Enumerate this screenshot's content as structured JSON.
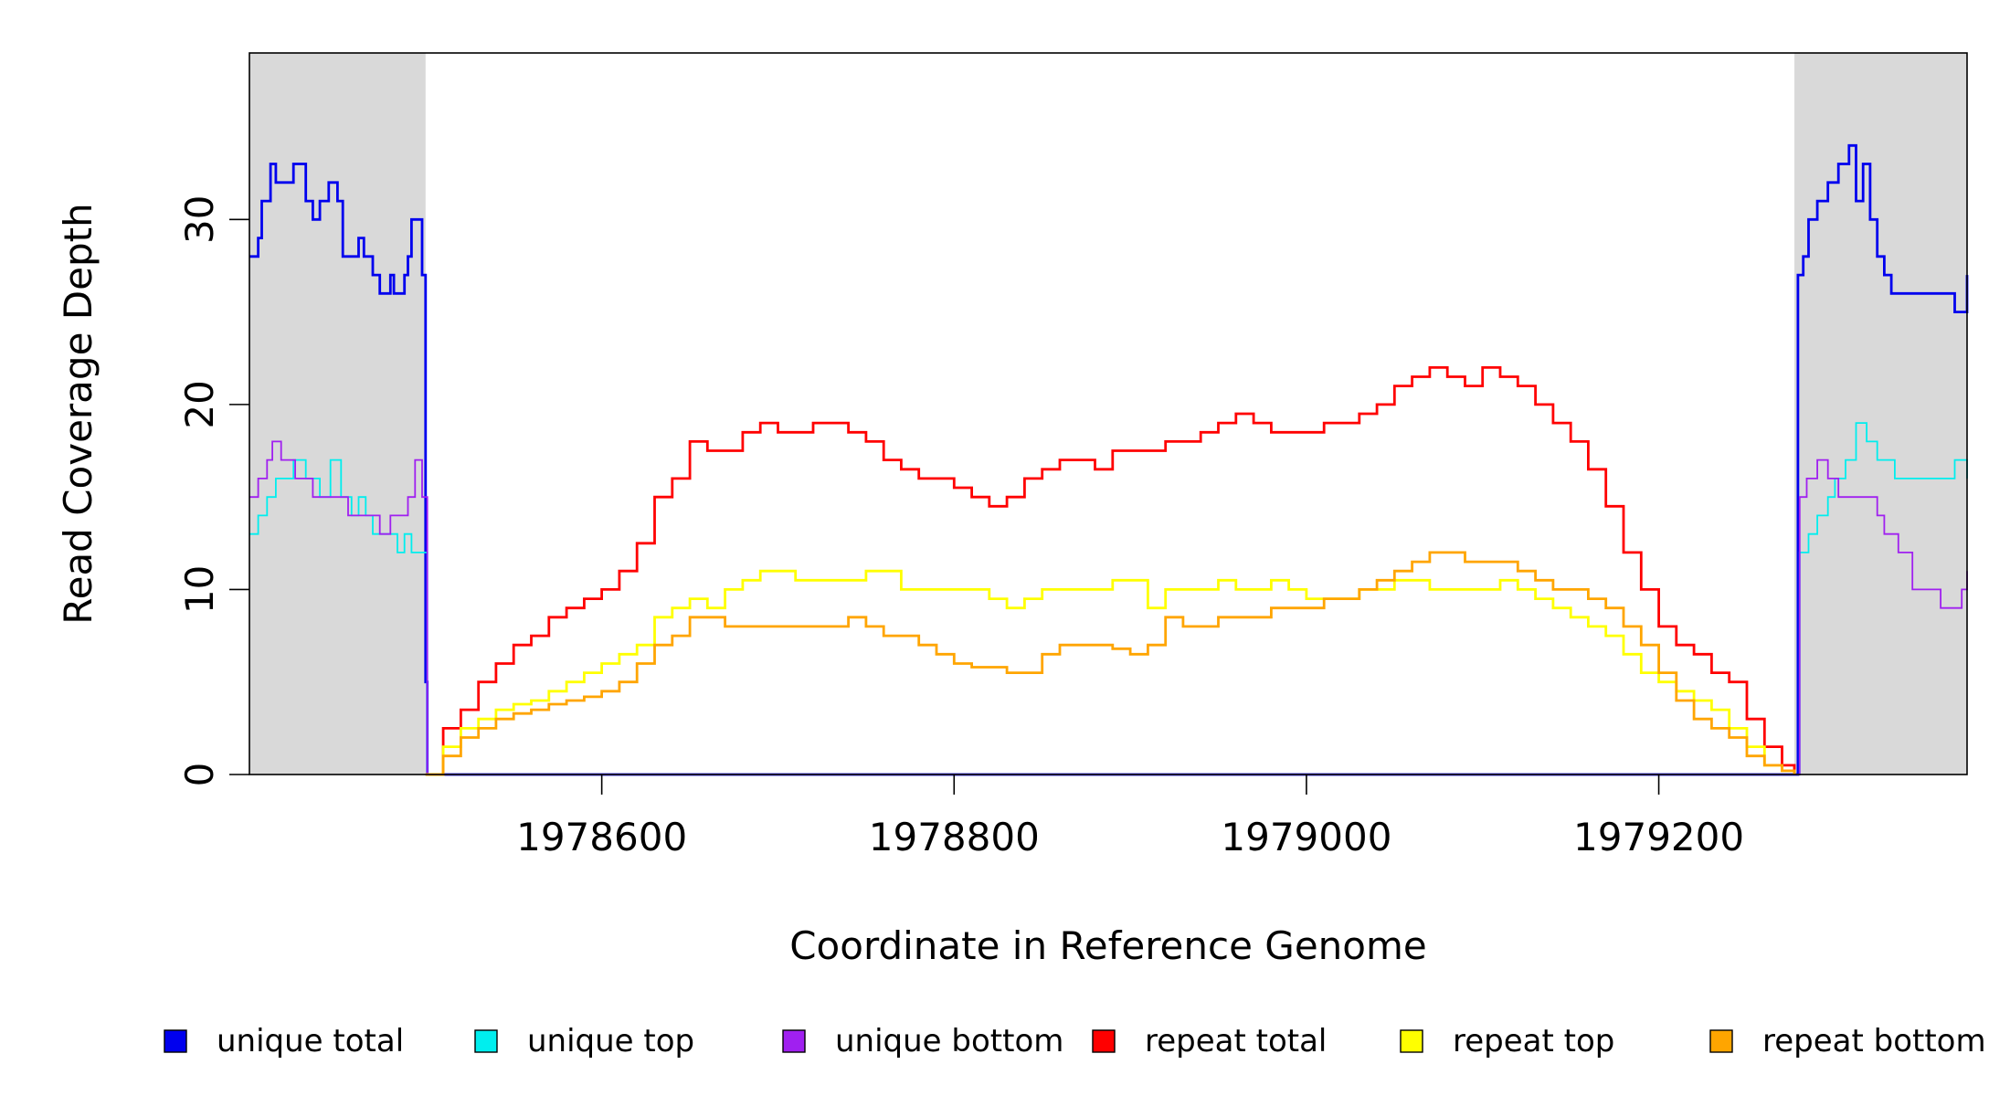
{
  "chart_data": {
    "type": "line",
    "title": "",
    "xlabel": "Coordinate in Reference Genome",
    "ylabel": "Read Coverage Depth",
    "xlim": [
      1978400,
      1979375
    ],
    "ylim": [
      0,
      39
    ],
    "x_ticks": [
      1978600,
      1978800,
      1979000,
      1979200
    ],
    "y_ticks": [
      0,
      10,
      20,
      30
    ],
    "x_tick_labels": [
      "1978600",
      "1978800",
      "1979000",
      "1979200"
    ],
    "y_tick_labels": [
      "0",
      "10",
      "20",
      "30"
    ],
    "grid": false,
    "legend_position": "bottom",
    "shaded_regions": [
      [
        1978400,
        1978500
      ],
      [
        1979277,
        1979375
      ]
    ],
    "shade_color": "#d9d9d9",
    "series": [
      {
        "name": "unique total",
        "color": "#0000ee",
        "x": [
          1978400,
          1978405,
          1978407,
          1978412,
          1978415,
          1978422,
          1978425,
          1978432,
          1978436,
          1978440,
          1978445,
          1978450,
          1978453,
          1978458,
          1978462,
          1978465,
          1978470,
          1978474,
          1978478,
          1978480,
          1978482,
          1978485,
          1978488,
          1978490,
          1978492,
          1978496,
          1978498,
          1978500,
          1978501,
          1979277,
          1979279,
          1979282,
          1979285,
          1979290,
          1979296,
          1979302,
          1979308,
          1979312,
          1979316,
          1979320,
          1979324,
          1979328,
          1979332,
          1979335,
          1979340,
          1979348,
          1979358,
          1979365,
          1979368,
          1979375
        ],
        "y": [
          28,
          29,
          31,
          33,
          32,
          32,
          33,
          31,
          30,
          31,
          32,
          31,
          28,
          28,
          29,
          28,
          27,
          26,
          26,
          27,
          26,
          26,
          27,
          28,
          30,
          30,
          27,
          5,
          0,
          0,
          27,
          28,
          30,
          31,
          32,
          33,
          34,
          31,
          33,
          30,
          28,
          27,
          26,
          26,
          26,
          26,
          26,
          26,
          25,
          27
        ]
      },
      {
        "name": "unique top",
        "color": "#00eeee",
        "x": [
          1978400,
          1978405,
          1978410,
          1978415,
          1978425,
          1978432,
          1978440,
          1978446,
          1978452,
          1978458,
          1978462,
          1978466,
          1978470,
          1978478,
          1978484,
          1978488,
          1978492,
          1978496,
          1978499,
          1978501,
          1979277,
          1979280,
          1979285,
          1979290,
          1979296,
          1979300,
          1979306,
          1979312,
          1979318,
          1979324,
          1979334,
          1979345,
          1979360,
          1979368,
          1979375
        ],
        "y": [
          13,
          14,
          15,
          16,
          17,
          16,
          15,
          17,
          15,
          14,
          15,
          14,
          13,
          13,
          12,
          13,
          12,
          12,
          12,
          0,
          0,
          12,
          13,
          14,
          15,
          16,
          17,
          19,
          18,
          17,
          16,
          16,
          16,
          17,
          16
        ],
        "thin": true
      },
      {
        "name": "unique bottom",
        "color": "#a020f0",
        "x": [
          1978400,
          1978405,
          1978410,
          1978413,
          1978418,
          1978426,
          1978436,
          1978446,
          1978456,
          1978466,
          1978474,
          1978480,
          1978486,
          1978490,
          1978494,
          1978498,
          1978501,
          1979277,
          1979280,
          1979284,
          1979290,
          1979296,
          1979302,
          1979312,
          1979318,
          1979324,
          1979328,
          1979332,
          1979336,
          1979344,
          1979352,
          1979360,
          1979366,
          1979372,
          1979375
        ],
        "y": [
          15,
          16,
          17,
          18,
          17,
          16,
          15,
          15,
          14,
          14,
          13,
          14,
          14,
          15,
          17,
          15,
          0,
          0,
          15,
          16,
          17,
          16,
          15,
          15,
          15,
          14,
          13,
          13,
          12,
          10,
          10,
          9,
          9,
          10,
          11
        ],
        "thin": true
      },
      {
        "name": "repeat total",
        "color": "#ff0000",
        "x": [
          1978500,
          1978510,
          1978520,
          1978530,
          1978540,
          1978550,
          1978560,
          1978570,
          1978580,
          1978590,
          1978600,
          1978610,
          1978620,
          1978630,
          1978640,
          1978650,
          1978660,
          1978670,
          1978680,
          1978690,
          1978700,
          1978710,
          1978720,
          1978730,
          1978740,
          1978750,
          1978760,
          1978770,
          1978780,
          1978790,
          1978800,
          1978810,
          1978820,
          1978830,
          1978840,
          1978850,
          1978860,
          1978870,
          1978880,
          1978890,
          1978900,
          1978910,
          1978920,
          1978930,
          1978940,
          1978950,
          1978960,
          1978970,
          1978980,
          1978990,
          1979000,
          1979010,
          1979020,
          1979030,
          1979040,
          1979050,
          1979060,
          1979070,
          1979080,
          1979090,
          1979100,
          1979110,
          1979120,
          1979130,
          1979140,
          1979150,
          1979160,
          1979170,
          1979180,
          1979190,
          1979200,
          1979210,
          1979220,
          1979230,
          1979240,
          1979250,
          1979260,
          1979270,
          1979277
        ],
        "y": [
          0,
          2.5,
          3.5,
          5,
          6,
          7,
          7.5,
          8.5,
          9,
          9.5,
          10,
          11,
          12.5,
          15,
          16,
          18,
          17.5,
          17.5,
          18.5,
          19,
          18.5,
          18.5,
          19,
          19,
          18.5,
          18,
          17,
          16.5,
          16,
          16,
          15.5,
          15,
          14.5,
          15,
          16,
          16.5,
          17,
          17,
          16.5,
          17.5,
          17.5,
          17.5,
          18,
          18,
          18.5,
          19,
          19.5,
          19,
          18.5,
          18.5,
          18.5,
          19,
          19,
          19.5,
          20,
          21,
          21.5,
          22,
          21.5,
          21,
          22,
          21.5,
          21,
          20,
          19,
          18,
          16.5,
          14.5,
          12,
          10,
          8,
          7,
          6.5,
          5.5,
          5,
          3,
          1.5,
          0.5,
          0
        ]
      },
      {
        "name": "repeat top",
        "color": "#ffff00",
        "x": [
          1978500,
          1978510,
          1978520,
          1978530,
          1978540,
          1978550,
          1978560,
          1978570,
          1978580,
          1978590,
          1978600,
          1978610,
          1978620,
          1978630,
          1978640,
          1978650,
          1978660,
          1978670,
          1978680,
          1978690,
          1978700,
          1978710,
          1978720,
          1978730,
          1978740,
          1978750,
          1978760,
          1978770,
          1978780,
          1978790,
          1978800,
          1978810,
          1978820,
          1978830,
          1978840,
          1978850,
          1978860,
          1978870,
          1978880,
          1978890,
          1978900,
          1978910,
          1978920,
          1978930,
          1978940,
          1978950,
          1978960,
          1978970,
          1978980,
          1978990,
          1979000,
          1979010,
          1979020,
          1979030,
          1979040,
          1979050,
          1979060,
          1979070,
          1979080,
          1979090,
          1979100,
          1979110,
          1979120,
          1979130,
          1979140,
          1979150,
          1979160,
          1979170,
          1979180,
          1979190,
          1979200,
          1979210,
          1979220,
          1979230,
          1979240,
          1979250,
          1979260,
          1979270,
          1979277
        ],
        "y": [
          0,
          1.5,
          2.5,
          3,
          3.5,
          3.8,
          4,
          4.5,
          5,
          5.5,
          6,
          6.5,
          7,
          8.5,
          9,
          9.5,
          9,
          10,
          10.5,
          11,
          11,
          10.5,
          10.5,
          10.5,
          10.5,
          11,
          11,
          10,
          10,
          10,
          10,
          10,
          9.5,
          9,
          9.5,
          10,
          10,
          10,
          10,
          10.5,
          10.5,
          9,
          10,
          10,
          10,
          10.5,
          10,
          10,
          10.5,
          10,
          9.5,
          9.5,
          9.5,
          10,
          10,
          10.5,
          10.5,
          10,
          10,
          10,
          10,
          10.5,
          10,
          9.5,
          9,
          8.5,
          8,
          7.5,
          6.5,
          5.5,
          5,
          4.5,
          4,
          3.5,
          2.5,
          1.5,
          0.5,
          0.2,
          0
        ]
      },
      {
        "name": "repeat bottom",
        "color": "#ffa500",
        "x": [
          1978500,
          1978510,
          1978520,
          1978530,
          1978540,
          1978550,
          1978560,
          1978570,
          1978580,
          1978590,
          1978600,
          1978610,
          1978620,
          1978630,
          1978640,
          1978650,
          1978660,
          1978670,
          1978680,
          1978690,
          1978700,
          1978710,
          1978720,
          1978730,
          1978740,
          1978750,
          1978760,
          1978770,
          1978780,
          1978790,
          1978800,
          1978810,
          1978820,
          1978830,
          1978840,
          1978850,
          1978860,
          1978870,
          1978880,
          1978890,
          1978900,
          1978910,
          1978920,
          1978930,
          1978940,
          1978950,
          1978960,
          1978970,
          1978980,
          1978990,
          1979000,
          1979010,
          1979020,
          1979030,
          1979040,
          1979050,
          1979060,
          1979070,
          1979080,
          1979090,
          1979100,
          1979110,
          1979120,
          1979130,
          1979140,
          1979150,
          1979160,
          1979170,
          1979180,
          1979190,
          1979200,
          1979210,
          1979220,
          1979230,
          1979240,
          1979250,
          1979260,
          1979270,
          1979277
        ],
        "y": [
          0,
          1,
          2,
          2.5,
          3,
          3.3,
          3.5,
          3.8,
          4,
          4.2,
          4.5,
          5,
          6,
          7,
          7.5,
          8.5,
          8.5,
          8,
          8,
          8,
          8,
          8,
          8,
          8,
          8.5,
          8,
          7.5,
          7.5,
          7,
          6.5,
          6,
          5.8,
          5.8,
          5.5,
          5.5,
          6.5,
          7,
          7,
          7,
          6.8,
          6.5,
          7,
          8.5,
          8,
          8,
          8.5,
          8.5,
          8.5,
          9,
          9,
          9,
          9.5,
          9.5,
          10,
          10.5,
          11,
          11.5,
          12,
          12,
          11.5,
          11.5,
          11.5,
          11,
          10.5,
          10,
          10,
          9.5,
          9,
          8,
          7,
          5.5,
          4,
          3,
          2.5,
          2,
          1,
          0.5,
          0.2,
          0
        ]
      }
    ]
  }
}
